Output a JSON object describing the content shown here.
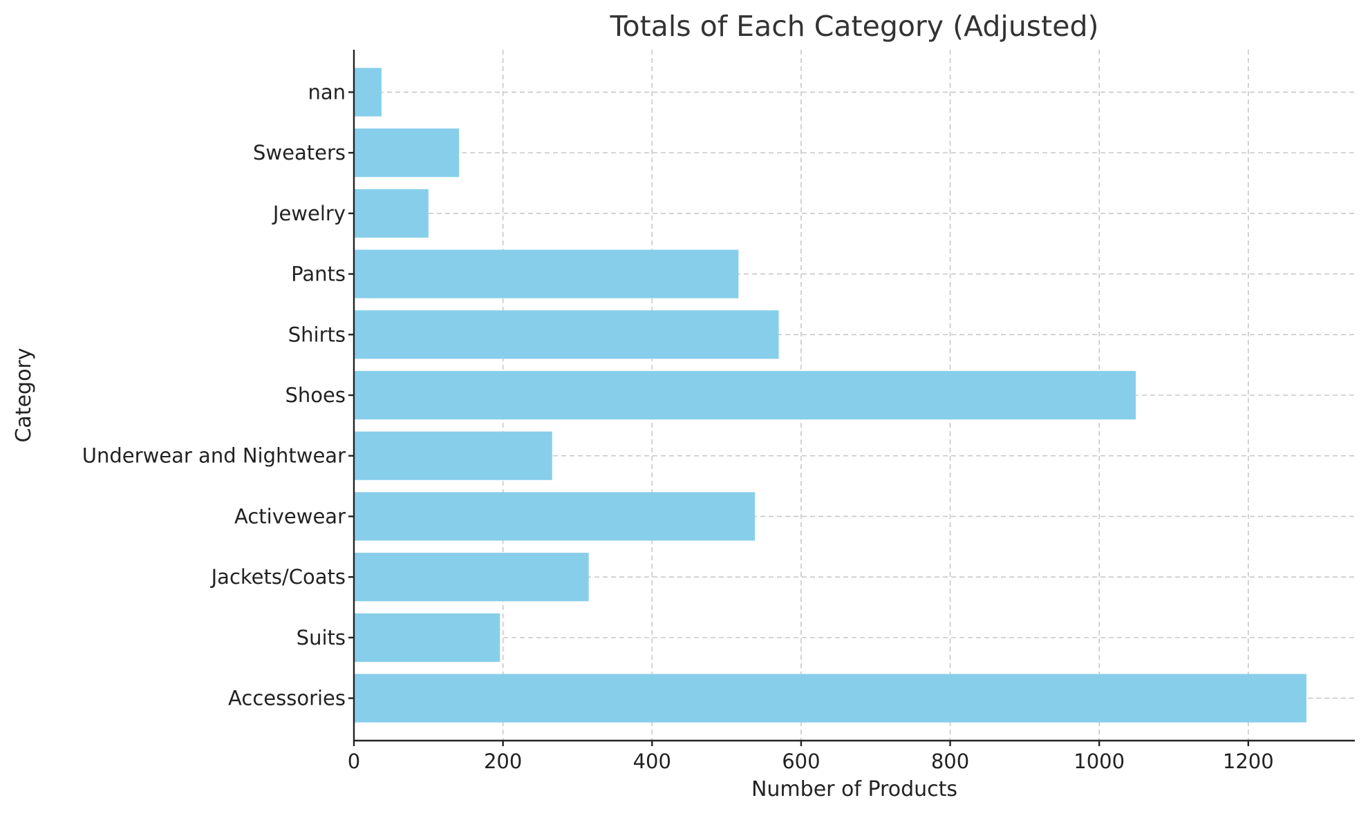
{
  "chart_data": {
    "type": "bar",
    "orientation": "horizontal",
    "title": "Totals of Each Category (Adjusted)",
    "xlabel": "Number of Products",
    "ylabel": "Category",
    "categories": [
      "Accessories",
      "Suits",
      "Jackets/Coats",
      "Activewear",
      "Underwear and Nightwear",
      "Shoes",
      "Shirts",
      "Pants",
      "Jewelry",
      "Sweaters",
      "nan"
    ],
    "values": [
      1278,
      196,
      315,
      538,
      266,
      1049,
      570,
      516,
      100,
      141,
      37
    ],
    "xlim": [
      0,
      1343
    ],
    "xticks": [
      0,
      200,
      400,
      600,
      800,
      1000,
      1200
    ],
    "grid": true,
    "legend": "none",
    "bar_color": "#87ceeb"
  }
}
